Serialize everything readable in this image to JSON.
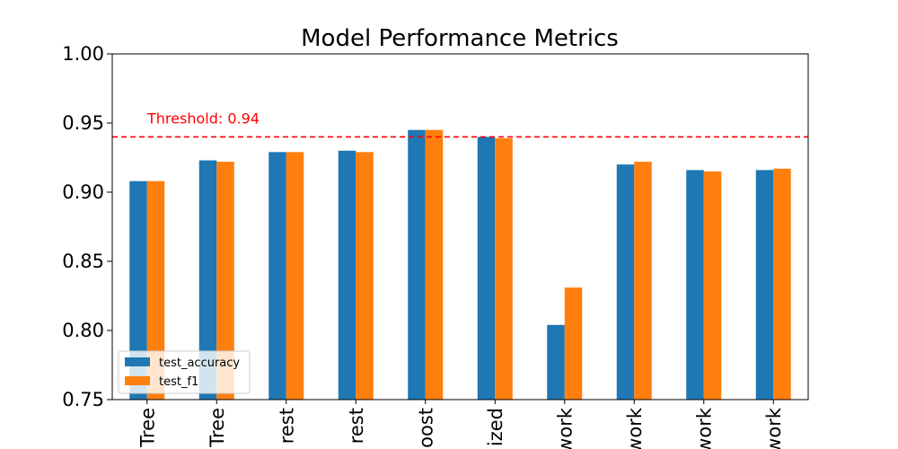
{
  "chart_data": {
    "type": "bar",
    "title": "Model Performance Metrics",
    "xlabel": "",
    "ylabel": "",
    "ylim": [
      0.75,
      1.0
    ],
    "yticks": [
      "0.75",
      "0.80",
      "0.85",
      "0.90",
      "0.95",
      "1.00"
    ],
    "categories": [
      "Tree",
      "Tree",
      "rest",
      "rest",
      "oost",
      "ized",
      "work",
      "work",
      "work",
      "work"
    ],
    "series": [
      {
        "name": "test_accuracy",
        "color": "#1f77b4",
        "values": [
          0.908,
          0.923,
          0.929,
          0.93,
          0.945,
          0.94,
          0.804,
          0.92,
          0.916,
          0.916
        ]
      },
      {
        "name": "test_f1",
        "color": "#ff7f0e",
        "values": [
          0.908,
          0.922,
          0.929,
          0.929,
          0.945,
          0.939,
          0.831,
          0.922,
          0.915,
          0.917
        ]
      }
    ],
    "threshold": {
      "value": 0.94,
      "label": "Threshold: 0.94",
      "color": "#ff0000"
    },
    "legend": "lower-left",
    "grid": false
  }
}
